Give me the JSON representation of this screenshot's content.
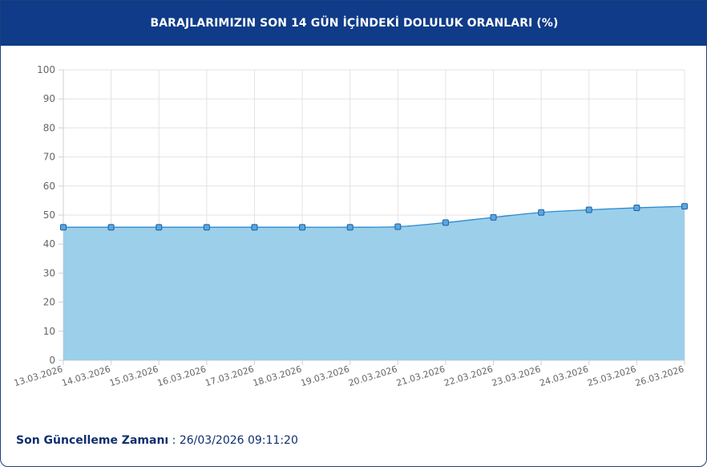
{
  "header": {
    "title": "BARAJLARIMIZIN SON 14 GÜN İÇİNDEKİ DOLULUK ORANLARI (%)"
  },
  "footer": {
    "label": "Son Güncelleme Zamanı",
    "separator": " : ",
    "value": "26/03/2026 09:11:20"
  },
  "colors": {
    "header_bg": "#0f3b88",
    "line": "#2b8bd0",
    "area": "#9ccfea",
    "point_fill": "#5aa7dd",
    "point_stroke": "#1f5fa6"
  },
  "chart_data": {
    "type": "area",
    "categories": [
      "13.03.2026",
      "14.03.2026",
      "15.03.2026",
      "16.03.2026",
      "17.03.2026",
      "18.03.2026",
      "19.03.2026",
      "20.03.2026",
      "21.03.2026",
      "22.03.2026",
      "23.03.2026",
      "24.03.2026",
      "25.03.2026",
      "26.03.2026"
    ],
    "values": [
      45.8,
      45.8,
      45.8,
      45.8,
      45.8,
      45.8,
      45.8,
      46.0,
      47.4,
      49.2,
      50.9,
      51.8,
      52.5,
      53.0
    ],
    "ylim": [
      0,
      100
    ],
    "yticks": [
      0,
      10,
      20,
      30,
      40,
      50,
      60,
      70,
      80,
      90,
      100
    ],
    "grid": true,
    "title": "",
    "xlabel": "",
    "ylabel": ""
  }
}
